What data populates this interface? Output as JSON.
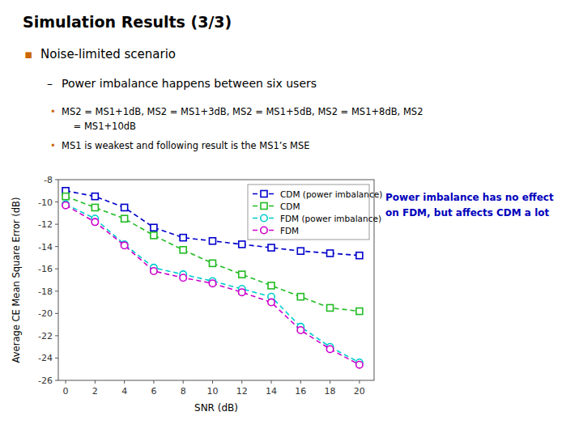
{
  "chart_data": {
    "type": "line",
    "title": "Simulation Results (3/3)",
    "bullets": [
      {
        "symbol": "▪",
        "color": "#cc6600",
        "text": "Noise-limited scenario"
      },
      {
        "symbol": "–",
        "color": "#000000",
        "text": "Power imbalance happens between six users"
      },
      {
        "symbol": "•",
        "color": "#cc6600",
        "text": "MS2 = MS1+1dB, MS2 = MS1+3dB, MS2 = MS1+5dB, MS2 = MS1+8dB, MS2"
      },
      {
        "text": "    = MS1+10dB"
      },
      {
        "symbol": "•",
        "color": "#cc6600",
        "text": "MS1 is weakest and following result is the MS1’s MSE"
      }
    ],
    "x_label": "SNR (dB)",
    "y_label": "Average CE Mean Square Error (dB)",
    "annotations": [
      {
        "text": "Power imbalance has no effect",
        "color": "#0000bb"
      },
      {
        "text": "on FDM, but affects CDM a lot",
        "color": "#0000bb"
      }
    ],
    "x": [
      0,
      2,
      4,
      6,
      8,
      10,
      12,
      14,
      16,
      18,
      20
    ],
    "series": [
      {
        "name": "CDM (power imbalance)",
        "color": "#0000cc",
        "marker": "square",
        "line_style": "dashed",
        "values": [
          -9.0,
          -9.5,
          -10.5,
          -12.3,
          -13.2,
          -13.5,
          -13.8,
          -14.1,
          -14.4,
          -14.6,
          -14.8
        ]
      },
      {
        "name": "CDM",
        "color": "#22bb22",
        "marker": "square",
        "line_style": "dashed",
        "values": [
          -9.5,
          -10.5,
          -11.5,
          -13.0,
          -14.3,
          -15.5,
          -16.5,
          -17.5,
          -18.5,
          -19.5,
          -19.8
        ]
      },
      {
        "name": "FDM (power imbalance)",
        "color": "#00cccc",
        "marker": "circle",
        "line_style": "dashed",
        "values": [
          -10.2,
          -11.5,
          -13.8,
          -15.9,
          -16.5,
          -17.1,
          -17.8,
          -18.5,
          -21.2,
          -23.0,
          -24.4
        ]
      },
      {
        "name": "FDM",
        "color": "#cc00cc",
        "marker": "circle",
        "line_style": "dashed",
        "values": [
          -10.3,
          -11.8,
          -13.9,
          -16.2,
          -16.8,
          -17.3,
          -18.1,
          -19.0,
          -21.5,
          -23.2,
          -24.6
        ]
      }
    ],
    "xlim": [
      -0.5,
      21
    ],
    "ylim": [
      -26,
      -8
    ],
    "xticks": [
      0,
      2,
      4,
      6,
      8,
      10,
      12,
      14,
      16,
      18,
      20
    ],
    "yticks": [
      -8,
      -10,
      -12,
      -14,
      -16,
      -18,
      -20,
      -22,
      -24,
      -26
    ],
    "grid": false,
    "legend": "upper right"
  }
}
